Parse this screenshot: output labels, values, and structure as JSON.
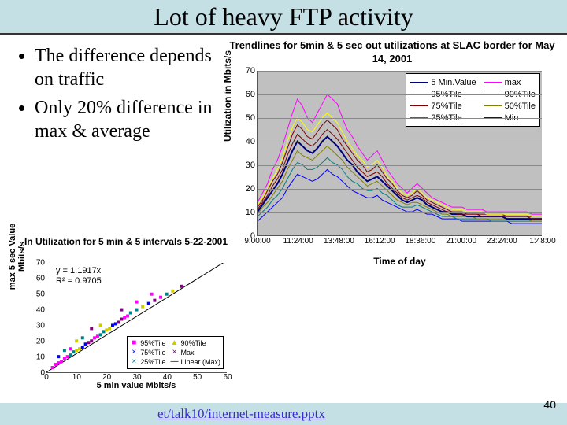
{
  "title": "Lot of heavy FTP activity",
  "bullets": [
    "The difference depends on traffic",
    "Only 20% difference in max & average"
  ],
  "main_chart": {
    "type": "line",
    "title": "Trendlines for 5min & 5 sec out utilizations at SLAC border for May 14, 2001",
    "ylabel": "Utilization in Mbits/s",
    "xlabel": "Time of day",
    "ylim": [
      0,
      70
    ],
    "yticks": [
      0,
      10,
      20,
      30,
      40,
      50,
      60,
      70
    ],
    "xticks": [
      "9:00:00",
      "11:24:00",
      "13:48:00",
      "16:12:00",
      "18:36:00",
      "21:00:00",
      "23:24:00",
      "1:48:00"
    ],
    "background_color": "#c0c0c0",
    "grid_color": "#888888",
    "legend": [
      {
        "label": "5 Min.Value",
        "color": "#000080",
        "width": 2
      },
      {
        "label": "95%Tile",
        "color": "#ffff00",
        "width": 1
      },
      {
        "label": "75%Tile",
        "color": "#800000",
        "width": 1
      },
      {
        "label": "25%Tile",
        "color": "#008080",
        "width": 1
      },
      {
        "label": "max",
        "color": "#ff00ff",
        "width": 1
      },
      {
        "label": "90%Tile",
        "color": "#800000",
        "width": 1
      },
      {
        "label": "50%Tile",
        "color": "#808000",
        "width": 1
      },
      {
        "label": "Min",
        "color": "#0000ff",
        "width": 1
      }
    ],
    "series": {
      "max": [
        14,
        18,
        22,
        28,
        32,
        38,
        45,
        52,
        58,
        55,
        50,
        48,
        52,
        56,
        60,
        58,
        56,
        50,
        45,
        42,
        38,
        35,
        32,
        34,
        36,
        32,
        28,
        25,
        22,
        20,
        18,
        20,
        22,
        20,
        18,
        16,
        15,
        14,
        13,
        12,
        12,
        12,
        11,
        11,
        11,
        11,
        10,
        10,
        10,
        10,
        10,
        10,
        10,
        10,
        10,
        9,
        9,
        9
      ],
      "p95": [
        13,
        16,
        20,
        24,
        28,
        33,
        40,
        46,
        50,
        48,
        45,
        44,
        47,
        50,
        52,
        50,
        48,
        44,
        40,
        37,
        34,
        32,
        29,
        30,
        32,
        29,
        25,
        23,
        20,
        18,
        17,
        18,
        20,
        18,
        16,
        15,
        14,
        13,
        12,
        11,
        11,
        11,
        10,
        10,
        10,
        10,
        9,
        9,
        9,
        9,
        9,
        9,
        9,
        9,
        9,
        8,
        8,
        8
      ],
      "p90": [
        12,
        15,
        19,
        23,
        26,
        31,
        37,
        43,
        47,
        45,
        42,
        41,
        44,
        47,
        49,
        47,
        45,
        41,
        38,
        35,
        32,
        30,
        27,
        28,
        30,
        27,
        24,
        22,
        19,
        17,
        16,
        17,
        19,
        17,
        15,
        14,
        13,
        12,
        11,
        10,
        10,
        10,
        9,
        9,
        9,
        9,
        9,
        9,
        9,
        9,
        8,
        8,
        8,
        8,
        8,
        8,
        8,
        8
      ],
      "p75": [
        11,
        14,
        17,
        21,
        24,
        28,
        34,
        39,
        43,
        41,
        39,
        38,
        40,
        43,
        45,
        43,
        41,
        38,
        35,
        32,
        29,
        27,
        25,
        26,
        27,
        25,
        22,
        20,
        18,
        16,
        15,
        16,
        17,
        16,
        14,
        13,
        12,
        11,
        10,
        10,
        9,
        9,
        9,
        9,
        9,
        8,
        8,
        8,
        8,
        8,
        8,
        8,
        8,
        8,
        8,
        7,
        7,
        7
      ],
      "val5min": [
        10,
        13,
        16,
        19,
        22,
        26,
        31,
        36,
        40,
        38,
        36,
        35,
        37,
        40,
        42,
        40,
        38,
        35,
        32,
        30,
        27,
        25,
        23,
        24,
        25,
        23,
        21,
        19,
        17,
        15,
        14,
        15,
        16,
        15,
        13,
        12,
        11,
        10,
        10,
        9,
        9,
        9,
        8,
        8,
        8,
        8,
        8,
        8,
        8,
        8,
        7,
        7,
        7,
        7,
        7,
        7,
        7,
        7
      ],
      "p50": [
        9,
        12,
        14,
        17,
        20,
        23,
        28,
        32,
        36,
        34,
        33,
        32,
        34,
        36,
        38,
        36,
        34,
        32,
        29,
        27,
        25,
        23,
        21,
        22,
        23,
        21,
        19,
        17,
        15,
        14,
        13,
        14,
        14,
        13,
        12,
        11,
        10,
        9,
        9,
        8,
        8,
        8,
        8,
        8,
        7,
        7,
        7,
        7,
        7,
        7,
        7,
        7,
        7,
        7,
        7,
        6,
        6,
        6
      ],
      "p25": [
        8,
        10,
        12,
        15,
        17,
        20,
        24,
        28,
        31,
        30,
        28,
        28,
        29,
        31,
        33,
        31,
        30,
        28,
        25,
        23,
        22,
        20,
        19,
        19,
        20,
        18,
        17,
        15,
        13,
        12,
        12,
        12,
        13,
        12,
        11,
        10,
        9,
        8,
        8,
        8,
        7,
        7,
        7,
        7,
        7,
        7,
        7,
        6,
        6,
        6,
        6,
        6,
        6,
        6,
        6,
        6,
        6,
        6
      ],
      "min": [
        6,
        8,
        10,
        12,
        14,
        16,
        20,
        23,
        26,
        25,
        24,
        23,
        24,
        26,
        28,
        26,
        25,
        23,
        21,
        19,
        18,
        17,
        16,
        16,
        17,
        15,
        14,
        13,
        12,
        11,
        10,
        10,
        11,
        10,
        9,
        9,
        8,
        7,
        7,
        7,
        7,
        6,
        6,
        6,
        6,
        6,
        6,
        6,
        6,
        6,
        6,
        5,
        5,
        5,
        5,
        5,
        5,
        5
      ]
    },
    "series_colors": {
      "max": "#ff00ff",
      "p95": "#ffff00",
      "p90": "#800000",
      "p75": "#800000",
      "val5min": "#000080",
      "p50": "#808000",
      "p25": "#008080",
      "min": "#0000ff"
    },
    "line_width": {
      "val5min": 2
    }
  },
  "scatter": {
    "type": "scatter",
    "title": "In Utilization for 5 min & 5 intervals 5-22-2001",
    "ylabel": "max 5 sec Value Mbits/s",
    "xlabel": "5 min value Mbits/s",
    "eqn_lines": [
      "y = 1.1917x",
      "R² = 0.9705"
    ],
    "xlim": [
      0,
      60
    ],
    "ylim": [
      0,
      70
    ],
    "xticks": [
      0,
      10,
      20,
      30,
      40,
      50,
      60
    ],
    "yticks": [
      0,
      10,
      20,
      30,
      40,
      50,
      60,
      70
    ],
    "legend": [
      {
        "label": "95%Tile",
        "glyph": "■",
        "color": "#ff00ff"
      },
      {
        "label": "75%Tile",
        "glyph": "×",
        "color": "#0000ff"
      },
      {
        "label": "25%Tile",
        "glyph": "×",
        "color": "#008080"
      },
      {
        "label": "90%Tile",
        "glyph": "▲",
        "color": "#cccc00"
      },
      {
        "label": "Max",
        "glyph": "×",
        "color": "#800080"
      },
      {
        "label": "Linear (Max)",
        "glyph": "—",
        "color": "#000000"
      }
    ],
    "fit_line": [
      [
        0,
        0
      ],
      [
        60,
        71.5
      ]
    ],
    "points": [
      [
        2,
        3,
        "#ff00ff"
      ],
      [
        3,
        5,
        "#ff00ff"
      ],
      [
        4,
        6,
        "#ff00ff"
      ],
      [
        5,
        7,
        "#ff00ff"
      ],
      [
        6,
        9,
        "#ff00ff"
      ],
      [
        7,
        10,
        "#ff00ff"
      ],
      [
        8,
        11,
        "#008080"
      ],
      [
        9,
        13,
        "#008080"
      ],
      [
        10,
        14,
        "#cccc00"
      ],
      [
        11,
        15,
        "#cccc00"
      ],
      [
        12,
        16,
        "#0000ff"
      ],
      [
        13,
        18,
        "#0000ff"
      ],
      [
        14,
        19,
        "#800080"
      ],
      [
        15,
        20,
        "#800080"
      ],
      [
        16,
        22,
        "#ff00ff"
      ],
      [
        17,
        23,
        "#ff00ff"
      ],
      [
        18,
        24,
        "#008080"
      ],
      [
        19,
        26,
        "#008080"
      ],
      [
        20,
        27,
        "#cccc00"
      ],
      [
        21,
        28,
        "#cccc00"
      ],
      [
        22,
        30,
        "#0000ff"
      ],
      [
        23,
        31,
        "#0000ff"
      ],
      [
        24,
        32,
        "#800080"
      ],
      [
        25,
        34,
        "#800080"
      ],
      [
        26,
        35,
        "#ff00ff"
      ],
      [
        27,
        36,
        "#ff00ff"
      ],
      [
        28,
        38,
        "#008080"
      ],
      [
        30,
        40,
        "#008080"
      ],
      [
        32,
        42,
        "#cccc00"
      ],
      [
        34,
        44,
        "#0000ff"
      ],
      [
        36,
        46,
        "#800080"
      ],
      [
        38,
        48,
        "#ff00ff"
      ],
      [
        40,
        50,
        "#008080"
      ],
      [
        42,
        52,
        "#cccc00"
      ],
      [
        45,
        55,
        "#800080"
      ],
      [
        8,
        15,
        "#ff00ff"
      ],
      [
        12,
        22,
        "#008080"
      ],
      [
        18,
        30,
        "#cccc00"
      ],
      [
        25,
        40,
        "#800080"
      ],
      [
        30,
        45,
        "#ff00ff"
      ],
      [
        4,
        10,
        "#0000ff"
      ],
      [
        6,
        14,
        "#008080"
      ],
      [
        10,
        20,
        "#cccc00"
      ],
      [
        15,
        28,
        "#800080"
      ],
      [
        35,
        50,
        "#ff00ff"
      ]
    ]
  },
  "footer_link": "et/talk10/internet-measure.pptx",
  "page_number": "40"
}
